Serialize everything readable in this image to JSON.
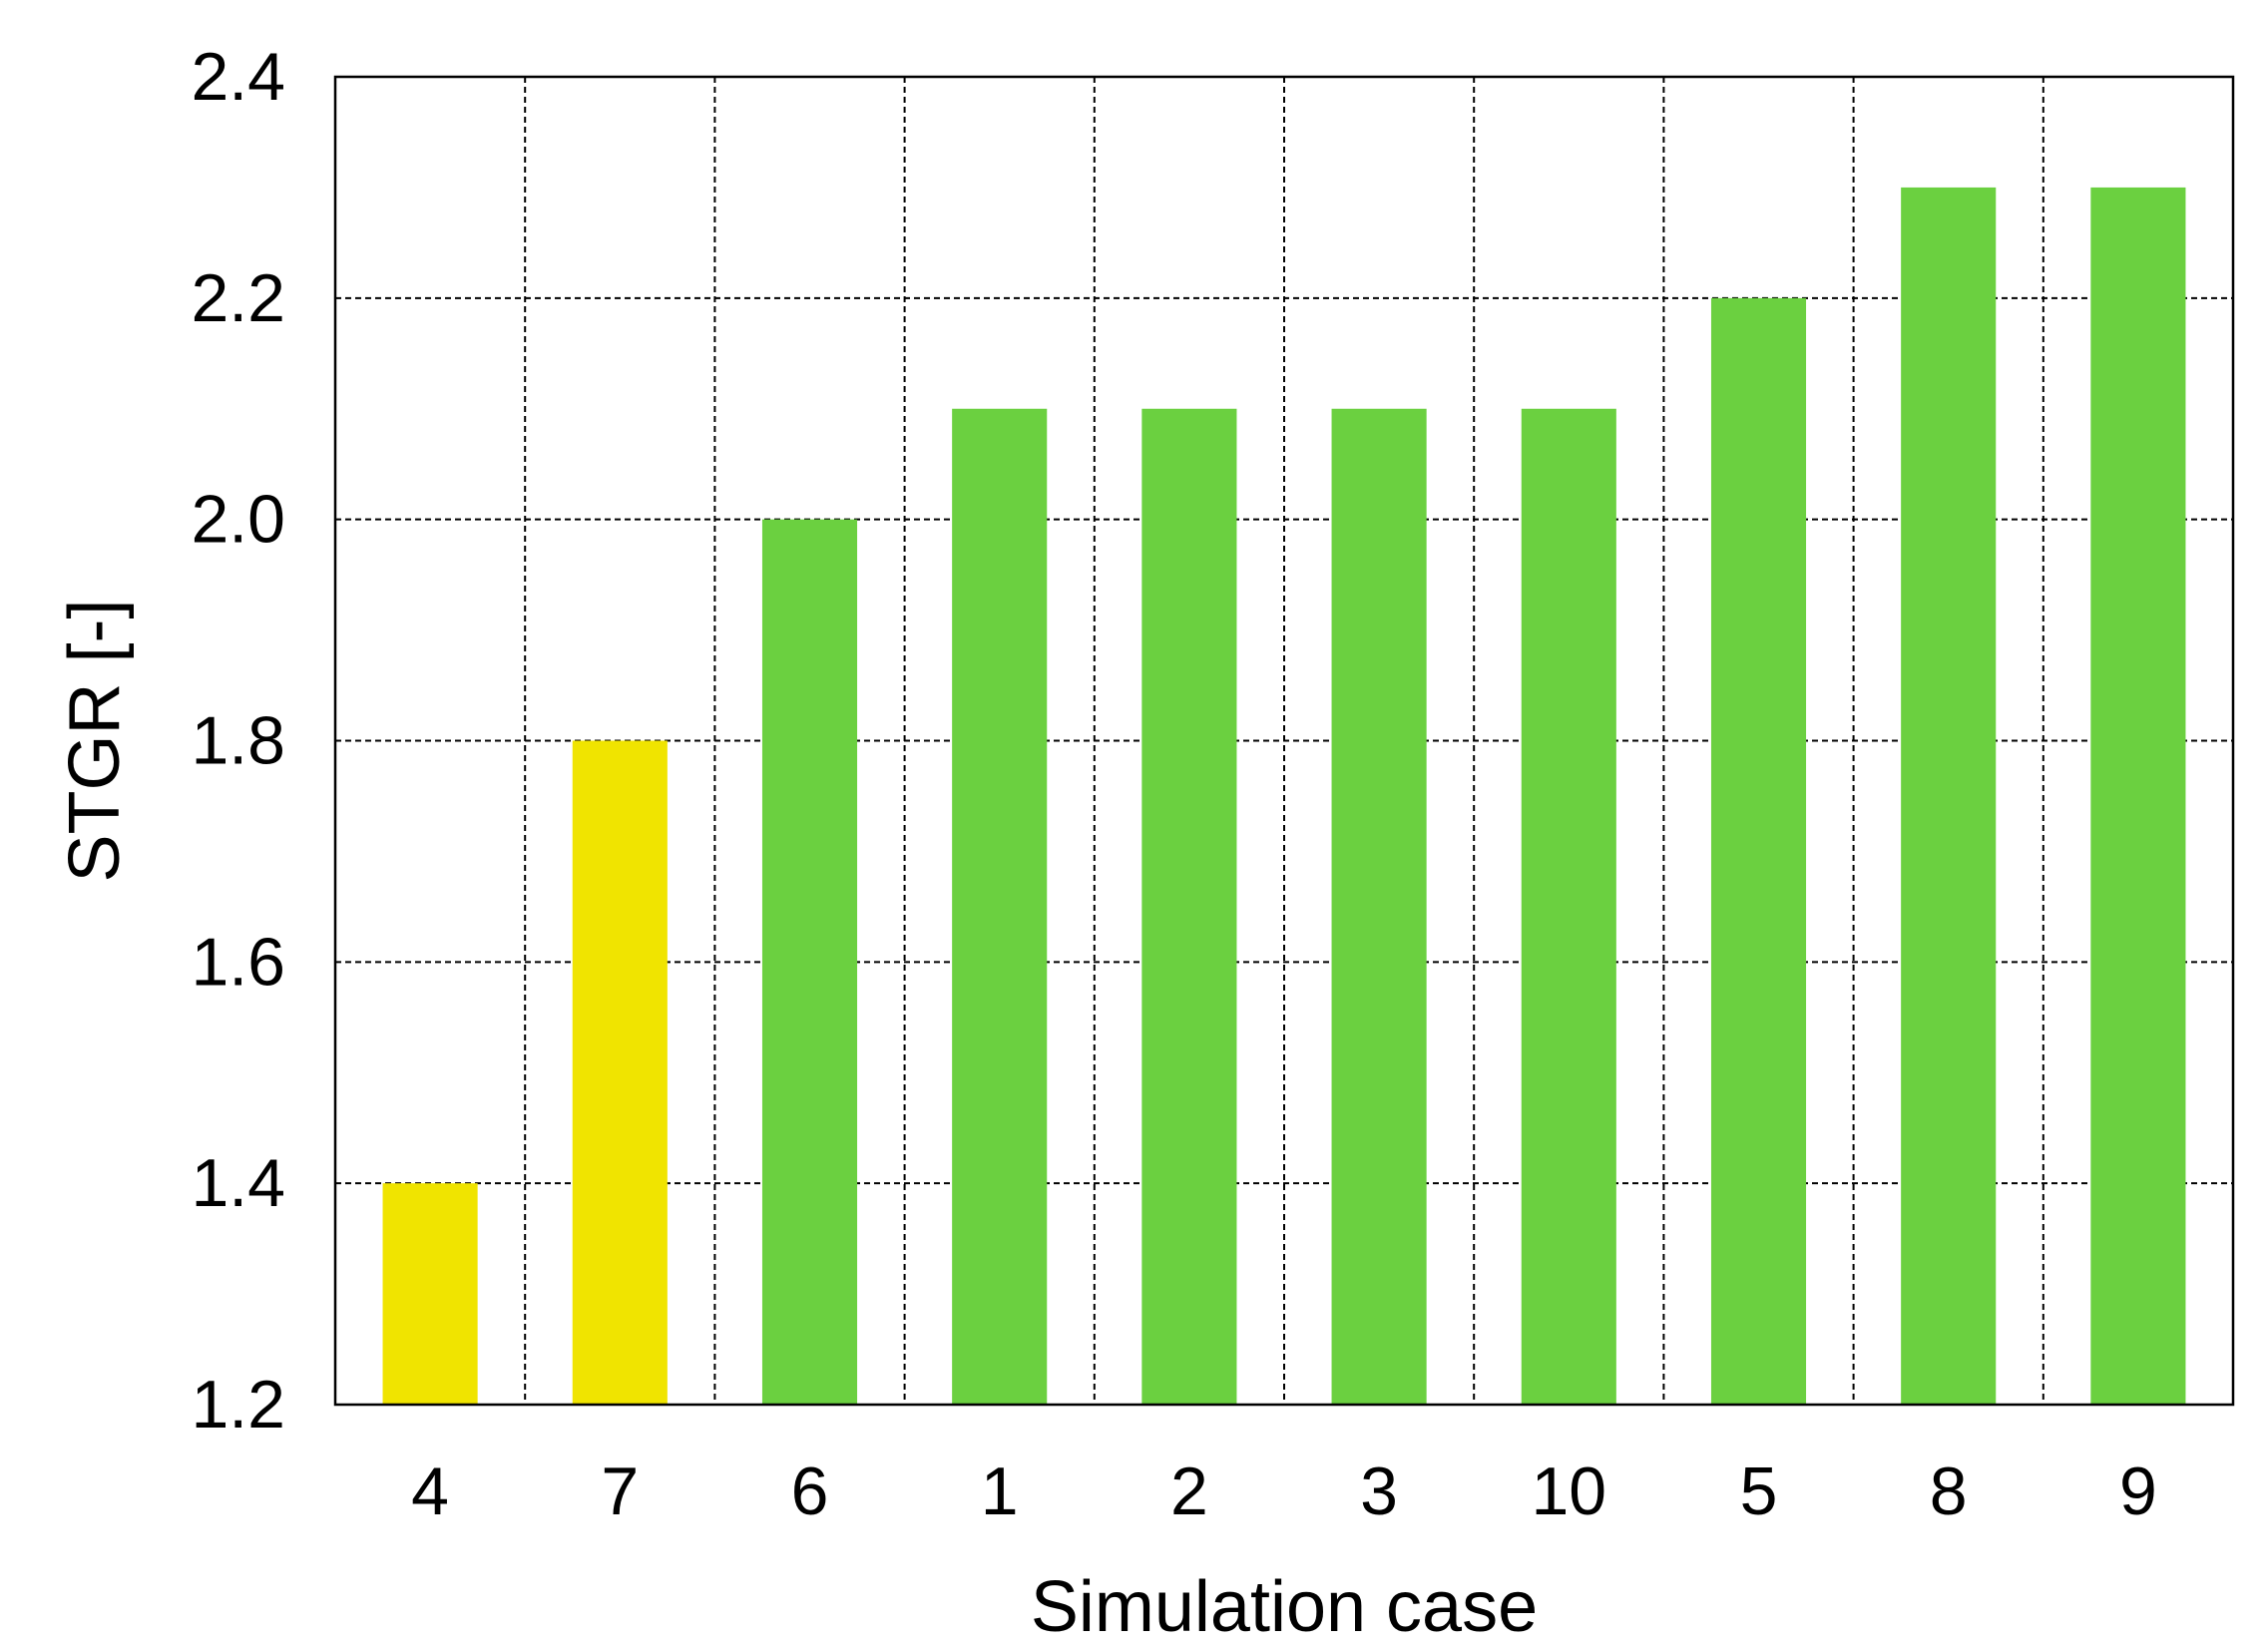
{
  "chart_data": {
    "type": "bar",
    "title": "",
    "xlabel": "Simulation case",
    "ylabel": "STGR [-]",
    "categories": [
      "4",
      "7",
      "6",
      "1",
      "2",
      "3",
      "10",
      "5",
      "8",
      "9"
    ],
    "values": [
      1.4,
      1.8,
      2.0,
      2.1,
      2.1,
      2.1,
      2.1,
      2.2,
      2.3,
      2.3
    ],
    "bar_colors": [
      "#f0e400",
      "#f0e400",
      "#6bd040",
      "#6bd040",
      "#6bd040",
      "#6bd040",
      "#6bd040",
      "#6bd040",
      "#6bd040",
      "#6bd040"
    ],
    "ylim": [
      1.2,
      2.4
    ],
    "yticks": [
      "1.2",
      "1.4",
      "1.6",
      "1.8",
      "2.0",
      "2.2",
      "2.4"
    ],
    "grid": true,
    "legend": "none"
  }
}
